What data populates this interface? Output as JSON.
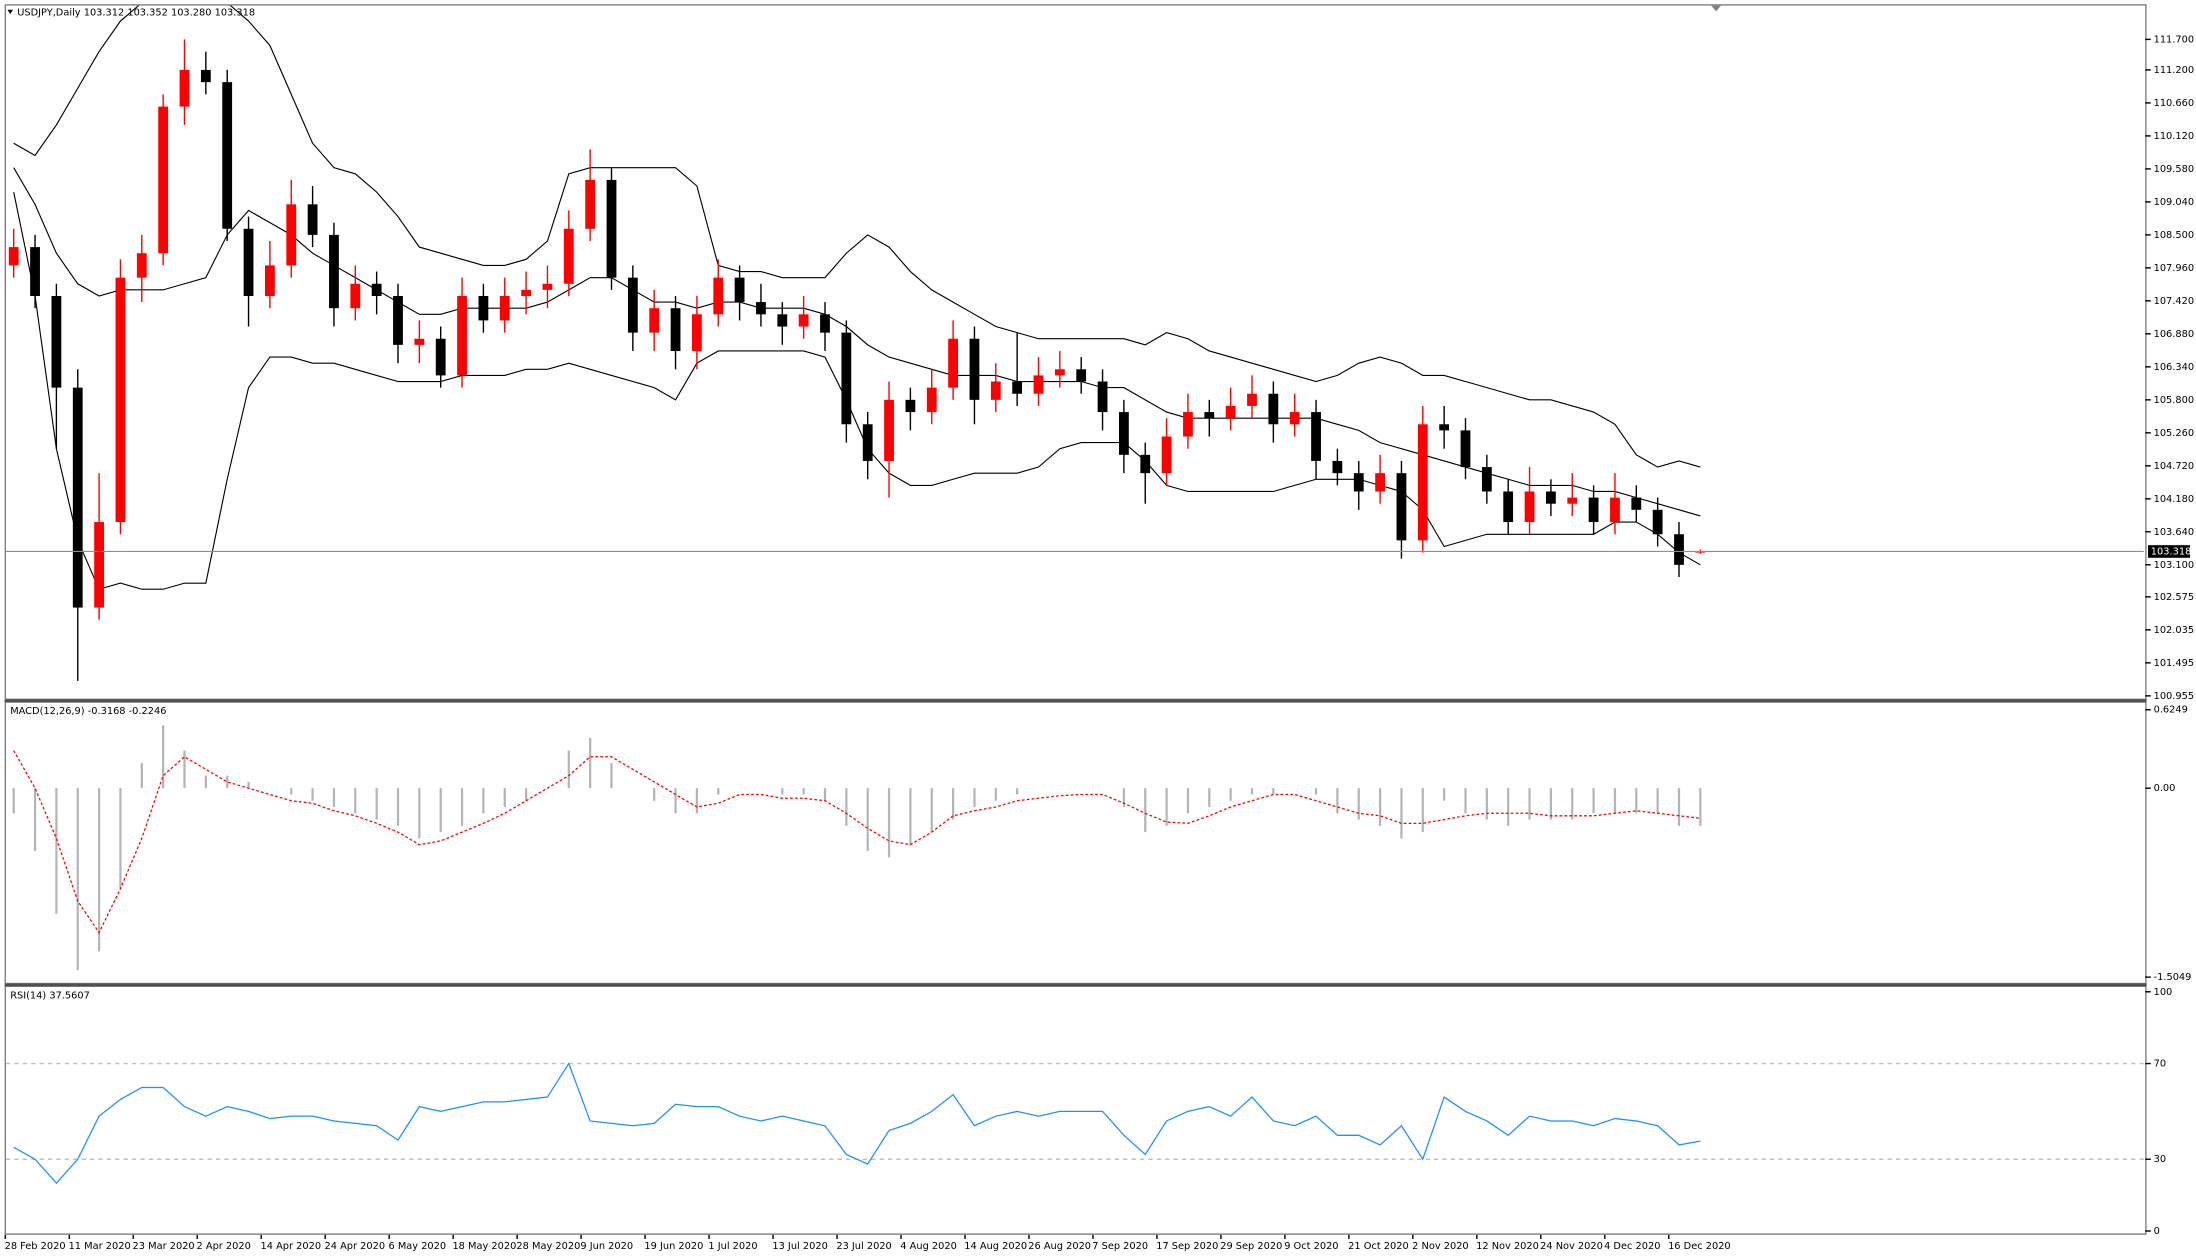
{
  "header": "USDJPY,Daily  103.312 103.352 103.280 103.318",
  "x_labels": [
    "28 Feb 2020",
    "11 Mar 2020",
    "23 Mar 2020",
    "2 Apr 2020",
    "14 Apr 2020",
    "24 Apr 2020",
    "6 May 2020",
    "18 May 2020",
    "28 May 2020",
    "9 Jun 2020",
    "19 Jun 2020",
    "1 Jul 2020",
    "13 Jul 2020",
    "23 Jul 2020",
    "4 Aug 2020",
    "14 Aug 2020",
    "26 Aug 2020",
    "7 Sep 2020",
    "17 Sep 2020",
    "29 Sep 2020",
    "9 Oct 2020",
    "21 Oct 2020",
    "2 Nov 2020",
    "12 Nov 2020",
    "24 Nov 2020",
    "4 Dec 2020",
    "16 Dec 2020"
  ],
  "chart_data": [
    {
      "type": "candlestick",
      "up_color": "#ff0000",
      "down_color": "#000000",
      "band_color": "#000000",
      "ylim": [
        100.91,
        112.23
      ],
      "yticks": [
        {
          "value": 111.7,
          "label": "111.700"
        },
        {
          "value": 111.2,
          "label": "111.200"
        },
        {
          "value": 110.66,
          "label": "110.660"
        },
        {
          "value": 110.12,
          "label": "110.120"
        },
        {
          "value": 109.58,
          "label": "109.580"
        },
        {
          "value": 109.04,
          "label": "109.040"
        },
        {
          "value": 108.5,
          "label": "108.500"
        },
        {
          "value": 107.96,
          "label": "107.960"
        },
        {
          "value": 107.42,
          "label": "107.420"
        },
        {
          "value": 106.88,
          "label": "106.880"
        },
        {
          "value": 106.34,
          "label": "106.340"
        },
        {
          "value": 105.8,
          "label": "105.800"
        },
        {
          "value": 105.26,
          "label": "105.260"
        },
        {
          "value": 104.72,
          "label": "104.720"
        },
        {
          "value": 104.18,
          "label": "104.180"
        },
        {
          "value": 103.64,
          "label": "103.640"
        },
        {
          "value": 103.1,
          "label": "103.100"
        },
        {
          "value": 102.575,
          "label": "102.575"
        },
        {
          "value": 102.035,
          "label": "102.035"
        },
        {
          "value": 101.495,
          "label": "101.495"
        },
        {
          "value": 100.955,
          "label": "100.955"
        }
      ],
      "current_price": {
        "value": 103.318,
        "label": "103.318"
      },
      "candles": [
        [
          108.0,
          108.6,
          107.8,
          108.3
        ],
        [
          108.3,
          108.5,
          107.3,
          107.5
        ],
        [
          107.5,
          107.7,
          105.0,
          106.0
        ],
        [
          106.0,
          106.3,
          101.2,
          102.4
        ],
        [
          102.4,
          104.6,
          102.2,
          103.8
        ],
        [
          103.8,
          108.1,
          103.6,
          107.8
        ],
        [
          107.8,
          108.5,
          107.4,
          108.2
        ],
        [
          108.2,
          110.8,
          108.0,
          110.6
        ],
        [
          110.6,
          111.7,
          110.3,
          111.2
        ],
        [
          111.2,
          111.5,
          110.8,
          111.0
        ],
        [
          111.0,
          111.2,
          108.4,
          108.6
        ],
        [
          108.6,
          108.8,
          107.0,
          107.5
        ],
        [
          107.5,
          108.4,
          107.3,
          108.0
        ],
        [
          108.0,
          109.4,
          107.8,
          109.0
        ],
        [
          109.0,
          109.3,
          108.3,
          108.5
        ],
        [
          108.5,
          108.7,
          107.0,
          107.3
        ],
        [
          107.3,
          108.0,
          107.1,
          107.7
        ],
        [
          107.7,
          107.9,
          107.2,
          107.5
        ],
        [
          107.5,
          107.7,
          106.4,
          106.7
        ],
        [
          106.7,
          107.1,
          106.4,
          106.8
        ],
        [
          106.8,
          107.0,
          106.0,
          106.2
        ],
        [
          106.2,
          107.8,
          106.0,
          107.5
        ],
        [
          107.5,
          107.7,
          106.9,
          107.1
        ],
        [
          107.1,
          107.8,
          106.9,
          107.5
        ],
        [
          107.5,
          107.9,
          107.2,
          107.6
        ],
        [
          107.6,
          108.0,
          107.3,
          107.7
        ],
        [
          107.7,
          108.9,
          107.5,
          108.6
        ],
        [
          108.6,
          109.9,
          108.4,
          109.4
        ],
        [
          109.4,
          109.6,
          107.6,
          107.8
        ],
        [
          107.8,
          108.0,
          106.6,
          106.9
        ],
        [
          106.9,
          107.6,
          106.6,
          107.3
        ],
        [
          107.3,
          107.5,
          106.3,
          106.6
        ],
        [
          106.6,
          107.5,
          106.3,
          107.2
        ],
        [
          107.2,
          108.1,
          107.0,
          107.8
        ],
        [
          107.8,
          108.0,
          107.1,
          107.4
        ],
        [
          107.4,
          107.7,
          107.0,
          107.2
        ],
        [
          107.2,
          107.4,
          106.7,
          107.0
        ],
        [
          107.0,
          107.5,
          106.8,
          107.2
        ],
        [
          107.2,
          107.4,
          106.6,
          106.9
        ],
        [
          106.9,
          107.1,
          105.1,
          105.4
        ],
        [
          105.4,
          105.6,
          104.5,
          104.8
        ],
        [
          104.8,
          106.1,
          104.2,
          105.8
        ],
        [
          105.8,
          106.0,
          105.3,
          105.6
        ],
        [
          105.6,
          106.3,
          105.4,
          106.0
        ],
        [
          106.0,
          107.1,
          105.8,
          106.8
        ],
        [
          106.8,
          107.0,
          105.4,
          105.8
        ],
        [
          105.8,
          106.4,
          105.6,
          106.1
        ],
        [
          106.1,
          106.9,
          105.7,
          105.9
        ],
        [
          105.9,
          106.5,
          105.7,
          106.2
        ],
        [
          106.2,
          106.6,
          106.0,
          106.3
        ],
        [
          106.3,
          106.5,
          105.9,
          106.1
        ],
        [
          106.1,
          106.3,
          105.3,
          105.6
        ],
        [
          105.6,
          105.8,
          104.6,
          104.9
        ],
        [
          104.9,
          105.1,
          104.1,
          104.6
        ],
        [
          104.6,
          105.5,
          104.4,
          105.2
        ],
        [
          105.2,
          105.9,
          105.0,
          105.6
        ],
        [
          105.6,
          105.8,
          105.2,
          105.5
        ],
        [
          105.5,
          106.0,
          105.3,
          105.7
        ],
        [
          105.7,
          106.2,
          105.5,
          105.9
        ],
        [
          105.9,
          106.1,
          105.1,
          105.4
        ],
        [
          105.4,
          105.9,
          105.2,
          105.6
        ],
        [
          105.6,
          105.8,
          104.5,
          104.8
        ],
        [
          104.8,
          105.0,
          104.4,
          104.6
        ],
        [
          104.6,
          104.8,
          104.0,
          104.3
        ],
        [
          104.3,
          104.9,
          104.1,
          104.6
        ],
        [
          104.6,
          104.8,
          103.2,
          103.5
        ],
        [
          103.5,
          105.7,
          103.3,
          105.4
        ],
        [
          105.4,
          105.7,
          105.0,
          105.3
        ],
        [
          105.3,
          105.5,
          104.5,
          104.7
        ],
        [
          104.7,
          104.9,
          104.1,
          104.3
        ],
        [
          104.3,
          104.5,
          103.6,
          103.8
        ],
        [
          103.8,
          104.7,
          103.6,
          104.3
        ],
        [
          104.3,
          104.5,
          103.9,
          104.1
        ],
        [
          104.1,
          104.6,
          103.9,
          104.2
        ],
        [
          104.2,
          104.4,
          103.6,
          103.8
        ],
        [
          103.8,
          104.6,
          103.6,
          104.2
        ],
        [
          104.2,
          104.4,
          103.8,
          104.0
        ],
        [
          104.0,
          104.2,
          103.4,
          103.6
        ],
        [
          103.6,
          103.8,
          102.9,
          103.1
        ],
        [
          103.312,
          103.352,
          103.28,
          103.318
        ]
      ],
      "bands": {
        "upper": [
          110.0,
          109.8,
          110.3,
          110.9,
          111.5,
          112.0,
          112.3,
          112.4,
          112.4,
          112.4,
          112.3,
          112.0,
          111.6,
          110.8,
          110.0,
          109.6,
          109.5,
          109.2,
          108.8,
          108.3,
          108.2,
          108.1,
          108.0,
          108.0,
          108.1,
          108.4,
          109.5,
          109.6,
          109.6,
          109.6,
          109.6,
          109.6,
          109.3,
          108.0,
          107.9,
          107.9,
          107.8,
          107.8,
          107.8,
          108.2,
          108.5,
          108.3,
          107.9,
          107.6,
          107.4,
          107.2,
          107.0,
          106.9,
          106.8,
          106.8,
          106.8,
          106.8,
          106.8,
          106.7,
          106.9,
          106.8,
          106.6,
          106.5,
          106.4,
          106.3,
          106.2,
          106.1,
          106.2,
          106.4,
          106.5,
          106.4,
          106.2,
          106.2,
          106.1,
          106.0,
          105.9,
          105.8,
          105.8,
          105.7,
          105.6,
          105.4,
          104.9,
          104.7,
          104.8,
          104.7
        ],
        "middle": [
          109.6,
          109.0,
          108.2,
          107.7,
          107.5,
          107.6,
          107.6,
          107.6,
          107.7,
          107.8,
          108.5,
          108.9,
          108.7,
          108.5,
          108.2,
          108.0,
          107.8,
          107.6,
          107.4,
          107.2,
          107.2,
          107.3,
          107.3,
          107.3,
          107.3,
          107.4,
          107.6,
          107.8,
          107.8,
          107.6,
          107.4,
          107.4,
          107.3,
          107.4,
          107.4,
          107.3,
          107.3,
          107.3,
          107.2,
          107.0,
          106.7,
          106.5,
          106.4,
          106.3,
          106.2,
          106.2,
          106.2,
          106.1,
          106.1,
          106.1,
          106.1,
          106.0,
          106.0,
          105.8,
          105.6,
          105.5,
          105.5,
          105.5,
          105.5,
          105.5,
          105.5,
          105.5,
          105.4,
          105.3,
          105.1,
          105.0,
          104.9,
          104.8,
          104.7,
          104.6,
          104.5,
          104.4,
          104.4,
          104.4,
          104.3,
          104.3,
          104.2,
          104.1,
          104.0,
          103.9
        ],
        "lower": [
          109.2,
          107.5,
          105.0,
          103.5,
          102.7,
          102.8,
          102.7,
          102.7,
          102.8,
          102.8,
          104.5,
          106.0,
          106.5,
          106.5,
          106.4,
          106.4,
          106.3,
          106.2,
          106.1,
          106.1,
          106.1,
          106.2,
          106.2,
          106.2,
          106.3,
          106.3,
          106.4,
          106.3,
          106.2,
          106.1,
          106.0,
          105.8,
          106.4,
          106.6,
          106.6,
          106.6,
          106.6,
          106.6,
          106.5,
          105.8,
          105.0,
          104.6,
          104.4,
          104.4,
          104.5,
          104.6,
          104.6,
          104.6,
          104.7,
          105.0,
          105.1,
          105.1,
          105.1,
          104.8,
          104.4,
          104.3,
          104.3,
          104.3,
          104.3,
          104.3,
          104.4,
          104.5,
          104.5,
          104.5,
          104.4,
          104.3,
          104.0,
          103.4,
          103.5,
          103.6,
          103.6,
          103.6,
          103.6,
          103.6,
          103.6,
          103.8,
          103.8,
          103.6,
          103.3,
          103.1
        ]
      }
    },
    {
      "type": "macd",
      "label": "MACD(12,26,9) -0.3168 -0.2246",
      "hist_color": "#b4b4b4",
      "signal_color": "#ff0000",
      "ylim": [
        -1.55,
        0.68
      ],
      "yticks": [
        0.6249,
        {
          "value": 0,
          "label": "0.00"
        },
        -1.5049
      ],
      "histogram": [
        -0.2,
        -0.5,
        -1.0,
        -1.45,
        -1.3,
        -0.8,
        0.2,
        0.5,
        0.3,
        0.1,
        0.1,
        0.05,
        0.0,
        -0.05,
        -0.1,
        -0.15,
        -0.2,
        -0.25,
        -0.3,
        -0.4,
        -0.35,
        -0.3,
        -0.2,
        -0.15,
        -0.1,
        0.0,
        0.3,
        0.4,
        0.2,
        0.0,
        -0.1,
        -0.2,
        -0.2,
        -0.05,
        0.0,
        0.0,
        -0.05,
        -0.05,
        -0.1,
        -0.3,
        -0.5,
        -0.55,
        -0.45,
        -0.35,
        -0.25,
        -0.15,
        -0.1,
        -0.05,
        0.0,
        0.0,
        0.0,
        0.0,
        -0.15,
        -0.35,
        -0.3,
        -0.2,
        -0.15,
        -0.1,
        -0.05,
        -0.05,
        0.0,
        -0.05,
        -0.2,
        -0.25,
        -0.3,
        -0.4,
        -0.35,
        -0.1,
        -0.2,
        -0.25,
        -0.3,
        -0.25,
        -0.25,
        -0.25,
        -0.2,
        -0.2,
        -0.2,
        -0.2,
        -0.3,
        -0.3
      ],
      "signal": [
        0.3,
        0.0,
        -0.4,
        -0.9,
        -1.15,
        -0.8,
        -0.4,
        0.1,
        0.25,
        0.15,
        0.05,
        0.0,
        -0.05,
        -0.1,
        -0.12,
        -0.18,
        -0.22,
        -0.28,
        -0.35,
        -0.45,
        -0.42,
        -0.35,
        -0.28,
        -0.2,
        -0.1,
        0.0,
        0.1,
        0.25,
        0.25,
        0.15,
        0.05,
        -0.05,
        -0.15,
        -0.12,
        -0.05,
        -0.05,
        -0.08,
        -0.08,
        -0.1,
        -0.2,
        -0.32,
        -0.42,
        -0.45,
        -0.35,
        -0.22,
        -0.18,
        -0.15,
        -0.1,
        -0.08,
        -0.06,
        -0.05,
        -0.05,
        -0.12,
        -0.2,
        -0.27,
        -0.28,
        -0.22,
        -0.15,
        -0.1,
        -0.05,
        -0.05,
        -0.1,
        -0.15,
        -0.2,
        -0.22,
        -0.28,
        -0.28,
        -0.25,
        -0.22,
        -0.2,
        -0.2,
        -0.2,
        -0.22,
        -0.22,
        -0.22,
        -0.2,
        -0.18,
        -0.2,
        -0.22,
        -0.24
      ]
    },
    {
      "type": "line",
      "label": "RSI(14) 37.5607",
      "color": "#1e90ff",
      "level_color": "#c0c0c0",
      "ylim": [
        -1,
        102
      ],
      "yticks": [
        100,
        70,
        30,
        0
      ],
      "levels": [
        70,
        30
      ],
      "values": [
        35,
        30,
        20,
        30,
        48,
        55,
        60,
        60,
        52,
        48,
        52,
        50,
        47,
        48,
        48,
        46,
        45,
        44,
        38,
        52,
        50,
        52,
        54,
        54,
        55,
        56,
        70,
        46,
        45,
        44,
        45,
        53,
        52,
        52,
        48,
        46,
        48,
        46,
        44,
        32,
        28,
        42,
        45,
        50,
        57,
        44,
        48,
        50,
        48,
        50,
        50,
        50,
        40,
        32,
        46,
        50,
        52,
        48,
        56,
        46,
        44,
        48,
        40,
        40,
        36,
        44,
        30,
        56,
        50,
        46,
        40,
        48,
        46,
        46,
        44,
        47,
        46,
        44,
        36,
        37.5607
      ]
    }
  ]
}
